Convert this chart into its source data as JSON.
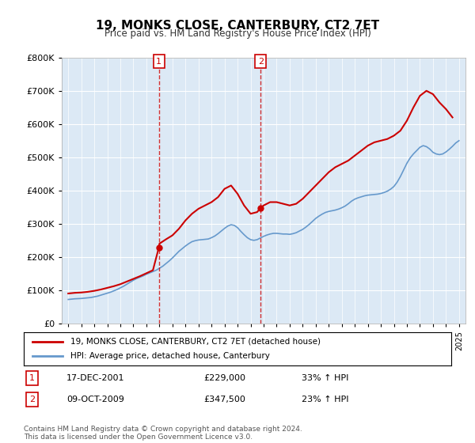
{
  "title": "19, MONKS CLOSE, CANTERBURY, CT2 7ET",
  "subtitle": "Price paid vs. HM Land Registry's House Price Index (HPI)",
  "legend_line1": "19, MONKS CLOSE, CANTERBURY, CT2 7ET (detached house)",
  "legend_line2": "HPI: Average price, detached house, Canterbury",
  "annotation1_num": "1",
  "annotation1_date": "17-DEC-2001",
  "annotation1_price": "£229,000",
  "annotation1_hpi": "33% ↑ HPI",
  "annotation2_num": "2",
  "annotation2_date": "09-OCT-2009",
  "annotation2_price": "£347,500",
  "annotation2_hpi": "23% ↑ HPI",
  "footer": "Contains HM Land Registry data © Crown copyright and database right 2024.\nThis data is licensed under the Open Government Licence v3.0.",
  "vline1_year": 2001.96,
  "vline2_year": 2009.77,
  "background_color": "#dce9f5",
  "plot_bg_color": "#dce9f5",
  "red_color": "#cc0000",
  "blue_color": "#6699cc",
  "ylim_min": 0,
  "ylim_max": 800000,
  "xlim_min": 1994.5,
  "xlim_max": 2025.5,
  "hpi_x": [
    1995,
    1995.25,
    1995.5,
    1995.75,
    1996,
    1996.25,
    1996.5,
    1996.75,
    1997,
    1997.25,
    1997.5,
    1997.75,
    1998,
    1998.25,
    1998.5,
    1998.75,
    1999,
    1999.25,
    1999.5,
    1999.75,
    2000,
    2000.25,
    2000.5,
    2000.75,
    2001,
    2001.25,
    2001.5,
    2001.75,
    2002,
    2002.25,
    2002.5,
    2002.75,
    2003,
    2003.25,
    2003.5,
    2003.75,
    2004,
    2004.25,
    2004.5,
    2004.75,
    2005,
    2005.25,
    2005.5,
    2005.75,
    2006,
    2006.25,
    2006.5,
    2006.75,
    2007,
    2007.25,
    2007.5,
    2007.75,
    2008,
    2008.25,
    2008.5,
    2008.75,
    2009,
    2009.25,
    2009.5,
    2009.75,
    2010,
    2010.25,
    2010.5,
    2010.75,
    2011,
    2011.25,
    2011.5,
    2011.75,
    2012,
    2012.25,
    2012.5,
    2012.75,
    2013,
    2013.25,
    2013.5,
    2013.75,
    2014,
    2014.25,
    2014.5,
    2014.75,
    2015,
    2015.25,
    2015.5,
    2015.75,
    2016,
    2016.25,
    2016.5,
    2016.75,
    2017,
    2017.25,
    2017.5,
    2017.75,
    2018,
    2018.25,
    2018.5,
    2018.75,
    2019,
    2019.25,
    2019.5,
    2019.75,
    2020,
    2020.25,
    2020.5,
    2020.75,
    2021,
    2021.25,
    2021.5,
    2021.75,
    2022,
    2022.25,
    2022.5,
    2022.75,
    2023,
    2023.25,
    2023.5,
    2023.75,
    2024,
    2024.25,
    2024.5,
    2024.75,
    2025
  ],
  "hpi_y": [
    72000,
    73000,
    74000,
    74500,
    75000,
    76000,
    77000,
    78000,
    80000,
    82000,
    85000,
    88000,
    91000,
    94000,
    98000,
    102000,
    107000,
    112000,
    118000,
    124000,
    130000,
    135000,
    139000,
    143000,
    148000,
    152000,
    156000,
    160000,
    166000,
    172000,
    180000,
    188000,
    197000,
    207000,
    217000,
    225000,
    233000,
    240000,
    246000,
    249000,
    251000,
    252000,
    253000,
    254000,
    258000,
    263000,
    270000,
    278000,
    286000,
    293000,
    297000,
    295000,
    288000,
    277000,
    267000,
    258000,
    252000,
    250000,
    252000,
    257000,
    262000,
    266000,
    269000,
    271000,
    271000,
    270000,
    269000,
    269000,
    268000,
    270000,
    273000,
    278000,
    283000,
    290000,
    298000,
    307000,
    316000,
    323000,
    329000,
    334000,
    337000,
    339000,
    341000,
    344000,
    348000,
    353000,
    360000,
    368000,
    374000,
    378000,
    381000,
    384000,
    386000,
    387000,
    388000,
    389000,
    391000,
    394000,
    398000,
    404000,
    412000,
    425000,
    442000,
    462000,
    482000,
    498000,
    510000,
    520000,
    530000,
    535000,
    532000,
    525000,
    515000,
    510000,
    508000,
    510000,
    516000,
    524000,
    533000,
    543000,
    550000
  ],
  "red_x": [
    1995,
    1995.5,
    1996,
    1996.5,
    1997,
    1997.5,
    1998,
    1998.5,
    1999,
    1999.5,
    2000,
    2000.5,
    2001,
    2001.5,
    2001.96,
    2002,
    2002.5,
    2003,
    2003.5,
    2004,
    2004.5,
    2005,
    2005.5,
    2006,
    2006.5,
    2007,
    2007.5,
    2008,
    2008.5,
    2009,
    2009.5,
    2009.77,
    2010,
    2010.5,
    2011,
    2011.5,
    2012,
    2012.5,
    2013,
    2013.5,
    2014,
    2014.5,
    2015,
    2015.5,
    2016,
    2016.5,
    2017,
    2017.5,
    2018,
    2018.5,
    2019,
    2019.5,
    2020,
    2020.5,
    2021,
    2021.5,
    2022,
    2022.5,
    2023,
    2023.5,
    2024,
    2024.5
  ],
  "red_y": [
    90000,
    92000,
    93000,
    95000,
    98000,
    102000,
    107000,
    112000,
    118000,
    126000,
    134000,
    142000,
    151000,
    160000,
    229000,
    240000,
    253000,
    265000,
    285000,
    310000,
    330000,
    345000,
    355000,
    365000,
    380000,
    405000,
    415000,
    390000,
    355000,
    330000,
    335000,
    347500,
    355000,
    365000,
    365000,
    360000,
    355000,
    360000,
    375000,
    395000,
    415000,
    435000,
    455000,
    470000,
    480000,
    490000,
    505000,
    520000,
    535000,
    545000,
    550000,
    555000,
    565000,
    580000,
    610000,
    650000,
    685000,
    700000,
    690000,
    665000,
    645000,
    620000
  ]
}
